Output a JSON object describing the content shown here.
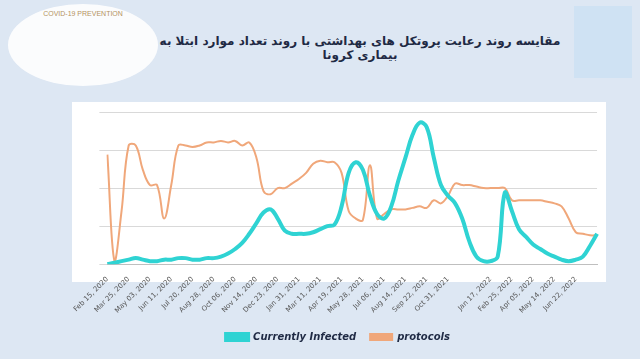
{
  "chart_data": {
    "type": "line",
    "title": "مقایسه روند رعایت پروتکل های بهداشتی با روند تعداد موارد ابتلا به بیماری کرونا",
    "logo_text": "COVID-19 PREVENTION",
    "categories": [
      "Feb 15, 2020",
      null,
      null,
      "Mar 25, 2020",
      null,
      null,
      "May 03, 2020",
      null,
      null,
      "Jun 11, 2020",
      null,
      null,
      "Jul 20, 2020",
      null,
      null,
      "Aug 28, 2020",
      null,
      null,
      "Oct 06, 2020",
      null,
      null,
      "Nov 14, 2020",
      null,
      null,
      "Dec 23, 2020",
      null,
      null,
      "Jan 31, 2021",
      null,
      null,
      "Mar 11, 2021",
      null,
      null,
      "Apr 19, 2021",
      null,
      null,
      "May 28, 2021",
      null,
      null,
      "Jul 06, 2021",
      null,
      null,
      "Aug 14, 2021",
      null,
      null,
      "Sep 22, 2021",
      null,
      null,
      "Oct 31, 2021",
      null,
      null,
      null,
      null,
      null,
      "Jan 17, 2022",
      null,
      null,
      "Feb 25, 2022",
      null,
      null,
      "Apr 05, 2022",
      null,
      null,
      "May 14, 2022",
      null,
      null,
      "Jun 22, 2022",
      null,
      null,
      null
    ],
    "series": [
      {
        "name": "Currently Infected",
        "color": "#2fd3d3",
        "values": [
          0,
          1,
          2,
          3,
          4,
          3,
          2,
          2,
          3,
          3,
          4,
          4,
          3,
          3,
          4,
          4,
          5,
          7,
          10,
          14,
          20,
          27,
          34,
          36,
          30,
          22,
          20,
          20,
          20,
          21,
          23,
          25,
          26,
          38,
          60,
          67,
          62,
          45,
          33,
          30,
          38,
          55,
          70,
          85,
          93,
          90,
          70,
          52,
          45,
          40,
          30,
          15,
          5,
          2,
          2,
          5,
          47,
          35,
          23,
          18,
          13,
          10,
          7,
          5,
          3,
          2,
          3,
          5,
          12,
          20
        ]
      },
      {
        "name": "protocols",
        "color": "#f0a77a",
        "values": [
          72,
          2,
          35,
          78,
          78,
          62,
          52,
          52,
          30,
          52,
          78,
          78,
          77,
          78,
          80,
          80,
          81,
          80,
          81,
          78,
          80,
          70,
          48,
          46,
          50,
          50,
          53,
          56,
          60,
          66,
          68,
          67,
          67,
          60,
          35,
          30,
          29,
          65,
          30,
          33,
          36,
          36,
          36,
          37,
          38,
          37,
          42,
          40,
          45,
          53,
          52,
          52,
          51,
          50,
          50,
          50,
          50,
          42,
          42,
          42,
          42,
          42,
          41,
          40,
          38,
          30,
          21,
          20,
          19,
          19
        ]
      }
    ],
    "ylim": [
      0,
      100
    ],
    "yticks": [
      0,
      25,
      50,
      75,
      100
    ],
    "grid": true,
    "tick_labels": "x",
    "legend": "bottom"
  }
}
